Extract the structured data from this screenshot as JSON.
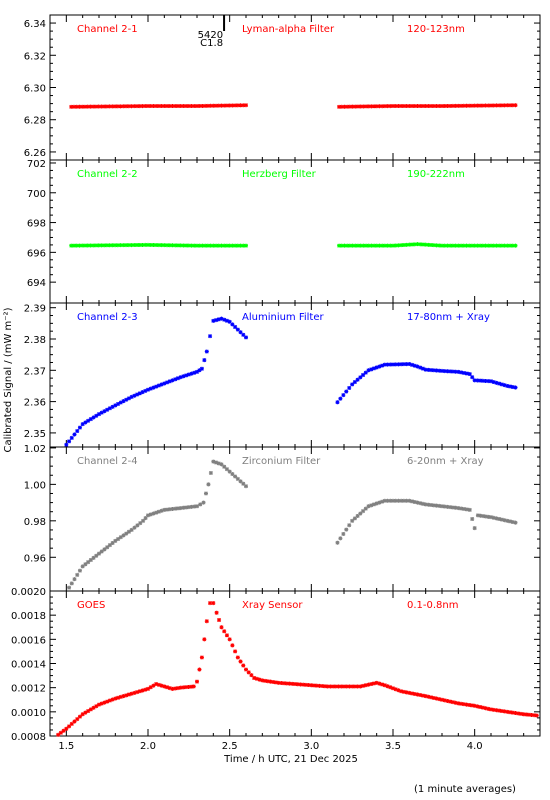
{
  "figure": {
    "ylabel": "Calibrated Signal / (mW m⁻²)",
    "xlabel": "Time / h UTC, 21 Dec 2025",
    "footnote": "(1 minute averages)",
    "marker": {
      "x": 2.38,
      "labels": [
        "5420",
        "C1.8"
      ]
    },
    "x_ticks": [
      1.5,
      2.0,
      2.5,
      3.0,
      3.5,
      4.0
    ],
    "x_tick_labels": [
      "1.5",
      "2.0",
      "2.5",
      "3.0",
      "3.5",
      "4.0"
    ],
    "xlim": [
      1.4,
      4.4
    ],
    "colors": {
      "red": "#ff0000",
      "green": "#00ff00",
      "blue": "#0000ff",
      "grey": "#808080",
      "axis": "#000000"
    }
  },
  "chart_data": [
    {
      "type": "scatter",
      "panel_labels": [
        "Channel 2-1",
        "Lyman-alpha Filter",
        "120-123nm"
      ],
      "color": "#ff0000",
      "ylim": [
        6.255,
        6.345
      ],
      "y_ticks": [
        6.26,
        6.28,
        6.3,
        6.32,
        6.34
      ],
      "y_tick_labels": [
        "6.26",
        "6.28",
        "6.30",
        "6.32",
        "6.34"
      ],
      "gap": [
        2.61,
        3.16
      ],
      "points": [
        [
          1.53,
          6.288
        ],
        [
          2.0,
          6.2885
        ],
        [
          2.3,
          6.2885
        ],
        [
          2.6,
          6.289
        ],
        [
          3.17,
          6.288
        ],
        [
          3.5,
          6.2885
        ],
        [
          3.8,
          6.2885
        ],
        [
          4.25,
          6.289
        ]
      ]
    },
    {
      "type": "scatter",
      "panel_labels": [
        "Channel 2-2",
        "Herzberg Filter",
        "190-222nm"
      ],
      "color": "#00ff00",
      "ylim": [
        692.6,
        702.2
      ],
      "y_ticks": [
        694,
        696,
        698,
        700,
        702
      ],
      "y_tick_labels": [
        "694",
        "696",
        "698",
        "700",
        "702"
      ],
      "gap": [
        2.61,
        3.16
      ],
      "points": [
        [
          1.53,
          696.45
        ],
        [
          2.0,
          696.5
        ],
        [
          2.3,
          696.45
        ],
        [
          2.6,
          696.45
        ],
        [
          3.17,
          696.45
        ],
        [
          3.5,
          696.45
        ],
        [
          3.65,
          696.55
        ],
        [
          3.8,
          696.45
        ],
        [
          4.25,
          696.45
        ]
      ]
    },
    {
      "type": "scatter",
      "panel_labels": [
        "Channel 2-3",
        "Aluminium Filter",
        "17-80nm + Xray"
      ],
      "color": "#0000ff",
      "ylim": [
        2.3455,
        2.3915
      ],
      "y_ticks": [
        2.35,
        2.36,
        2.37,
        2.38,
        2.39
      ],
      "y_tick_labels": [
        "2.35",
        "2.36",
        "2.37",
        "2.38",
        "2.39"
      ],
      "gap": [
        2.61,
        3.16
      ],
      "points": [
        [
          1.5,
          2.3462
        ],
        [
          1.55,
          2.3495
        ],
        [
          1.6,
          2.3528
        ],
        [
          1.7,
          2.356
        ],
        [
          1.8,
          2.3588
        ],
        [
          1.9,
          2.3615
        ],
        [
          2.0,
          2.3638
        ],
        [
          2.1,
          2.3658
        ],
        [
          2.2,
          2.3678
        ],
        [
          2.3,
          2.3695
        ],
        [
          2.33,
          2.3705
        ],
        [
          2.36,
          2.376
        ],
        [
          2.4,
          2.3858
        ],
        [
          2.45,
          2.3865
        ],
        [
          2.5,
          2.3855
        ],
        [
          2.55,
          2.383
        ],
        [
          2.6,
          2.3805
        ],
        [
          3.16,
          2.3598
        ],
        [
          3.25,
          2.3655
        ],
        [
          3.35,
          2.37
        ],
        [
          3.45,
          2.3718
        ],
        [
          3.6,
          2.372
        ],
        [
          3.65,
          2.3712
        ],
        [
          3.7,
          2.3702
        ],
        [
          3.8,
          2.3698
        ],
        [
          3.9,
          2.3695
        ],
        [
          3.97,
          2.3688
        ],
        [
          4.0,
          2.3668
        ],
        [
          4.1,
          2.3665
        ],
        [
          4.2,
          2.365
        ],
        [
          4.25,
          2.3645
        ]
      ]
    },
    {
      "type": "scatter",
      "panel_labels": [
        "Channel 2-4",
        "Zirconium Filter",
        "6-20nm + Xray"
      ],
      "color": "#808080",
      "ylim": [
        0.9415,
        1.0205
      ],
      "y_ticks": [
        0.96,
        0.98,
        1.0,
        1.02
      ],
      "y_tick_labels": [
        "0.96",
        "0.98",
        "1.00",
        "1.02"
      ],
      "gap": [
        2.61,
        3.16
      ],
      "points": [
        [
          1.5,
          0.941
        ],
        [
          1.55,
          0.948
        ],
        [
          1.6,
          0.955
        ],
        [
          1.7,
          0.962
        ],
        [
          1.8,
          0.969
        ],
        [
          1.9,
          0.975
        ],
        [
          1.97,
          0.98
        ],
        [
          2.0,
          0.983
        ],
        [
          2.1,
          0.986
        ],
        [
          2.2,
          0.987
        ],
        [
          2.3,
          0.988
        ],
        [
          2.34,
          0.99
        ],
        [
          2.37,
          1.0
        ],
        [
          2.4,
          1.0125
        ],
        [
          2.45,
          1.011
        ],
        [
          2.5,
          1.007
        ],
        [
          2.55,
          1.003
        ],
        [
          2.6,
          0.999
        ],
        [
          3.16,
          0.968
        ],
        [
          3.25,
          0.98
        ],
        [
          3.35,
          0.988
        ],
        [
          3.45,
          0.991
        ],
        [
          3.6,
          0.991
        ],
        [
          3.7,
          0.989
        ],
        [
          3.8,
          0.988
        ],
        [
          3.9,
          0.987
        ],
        [
          3.97,
          0.986
        ],
        [
          4.0,
          0.976
        ],
        [
          4.02,
          0.983
        ],
        [
          4.1,
          0.982
        ],
        [
          4.2,
          0.98
        ],
        [
          4.25,
          0.979
        ]
      ]
    },
    {
      "type": "scatter",
      "panel_labels": [
        "GOES",
        "Xray Sensor",
        "0.1-0.8nm"
      ],
      "color": "#ff0000",
      "ylim": [
        0.0008,
        0.002
      ],
      "y_ticks": [
        0.0008,
        0.001,
        0.0012,
        0.0014,
        0.0016,
        0.0018,
        0.002
      ],
      "y_tick_labels": [
        "0.0008",
        "0.0010",
        "0.0012",
        "0.0014",
        "0.0016",
        "0.0018",
        "0.0020"
      ],
      "gap": null,
      "points": [
        [
          1.45,
          0.00081
        ],
        [
          1.5,
          0.00086
        ],
        [
          1.6,
          0.00098
        ],
        [
          1.7,
          0.00106
        ],
        [
          1.8,
          0.00111
        ],
        [
          1.9,
          0.00115
        ],
        [
          2.0,
          0.00119
        ],
        [
          2.05,
          0.00123
        ],
        [
          2.1,
          0.00121
        ],
        [
          2.15,
          0.00119
        ],
        [
          2.2,
          0.0012
        ],
        [
          2.28,
          0.00121
        ],
        [
          2.3,
          0.00125
        ],
        [
          2.33,
          0.00145
        ],
        [
          2.36,
          0.00175
        ],
        [
          2.38,
          0.0019
        ],
        [
          2.4,
          0.0019
        ],
        [
          2.42,
          0.00182
        ],
        [
          2.45,
          0.0017
        ],
        [
          2.5,
          0.0016
        ],
        [
          2.55,
          0.00145
        ],
        [
          2.6,
          0.00135
        ],
        [
          2.65,
          0.00128
        ],
        [
          2.7,
          0.00126
        ],
        [
          2.8,
          0.00124
        ],
        [
          2.9,
          0.00123
        ],
        [
          3.0,
          0.00122
        ],
        [
          3.1,
          0.00121
        ],
        [
          3.2,
          0.00121
        ],
        [
          3.3,
          0.00121
        ],
        [
          3.4,
          0.00124
        ],
        [
          3.45,
          0.00122
        ],
        [
          3.55,
          0.00117
        ],
        [
          3.7,
          0.00113
        ],
        [
          3.8,
          0.0011
        ],
        [
          3.9,
          0.00107
        ],
        [
          4.0,
          0.00105
        ],
        [
          4.1,
          0.00102
        ],
        [
          4.2,
          0.001
        ],
        [
          4.3,
          0.00098
        ],
        [
          4.38,
          0.00097
        ]
      ]
    }
  ]
}
